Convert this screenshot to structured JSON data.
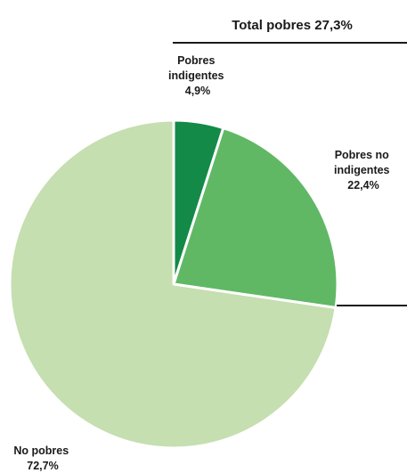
{
  "chart_data": {
    "type": "pie",
    "title": "Total pobres 27,3%",
    "slices": [
      {
        "label": [
          "Pobres",
          "indigentes"
        ],
        "value_label": "4,9%",
        "value": 4.9,
        "color": "#138a47"
      },
      {
        "label": [
          "Pobres no",
          "indigentes"
        ],
        "value_label": "22,4%",
        "value": 22.4,
        "color": "#60b865"
      },
      {
        "label": [
          "No pobres"
        ],
        "value_label": "72,7%",
        "value": 72.7,
        "color": "#c5dfb0"
      }
    ],
    "start_angle_deg": 0,
    "direction": "clockwise",
    "bracket": "title line spanning the two poverty slices"
  }
}
